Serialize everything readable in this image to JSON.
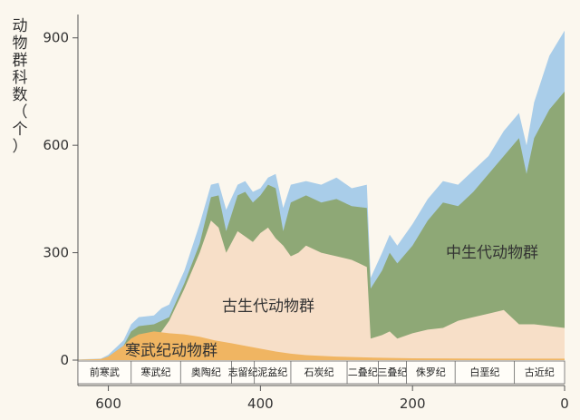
{
  "chart_data": {
    "type": "area",
    "ylabel": "动物群科数（个）",
    "xlim": [
      640,
      0
    ],
    "ylim": [
      0,
      950
    ],
    "x_ticks": [
      "600",
      "400",
      "200",
      "0"
    ],
    "y_ticks": [
      "0",
      "300",
      "600",
      "900"
    ],
    "grid": false,
    "colors": {
      "cambrian": "#f0b562",
      "paleozoic": "#f7dfc8",
      "modern": "#8ea876",
      "unassigned": "#a9cde9"
    },
    "series": [
      {
        "name": "寒武纪动物群",
        "key": "cambrian",
        "points": [
          [
            640,
            1
          ],
          [
            610,
            3
          ],
          [
            600,
            10
          ],
          [
            580,
            40
          ],
          [
            570,
            60
          ],
          [
            560,
            72
          ],
          [
            540,
            80
          ],
          [
            520,
            75
          ],
          [
            500,
            72
          ],
          [
            480,
            65
          ],
          [
            460,
            55
          ],
          [
            440,
            48
          ],
          [
            420,
            40
          ],
          [
            400,
            32
          ],
          [
            380,
            24
          ],
          [
            360,
            18
          ],
          [
            340,
            14
          ],
          [
            300,
            10
          ],
          [
            250,
            7
          ],
          [
            200,
            5
          ],
          [
            100,
            4
          ],
          [
            0,
            4
          ]
        ]
      },
      {
        "name": "古生代动物群",
        "key": "paleozoic",
        "points": [
          [
            640,
            1
          ],
          [
            610,
            2
          ],
          [
            600,
            8
          ],
          [
            580,
            25
          ],
          [
            570,
            35
          ],
          [
            560,
            40
          ],
          [
            540,
            50
          ],
          [
            520,
            110
          ],
          [
            500,
            200
          ],
          [
            480,
            300
          ],
          [
            465,
            390
          ],
          [
            455,
            370
          ],
          [
            445,
            300
          ],
          [
            430,
            360
          ],
          [
            420,
            345
          ],
          [
            410,
            330
          ],
          [
            400,
            355
          ],
          [
            390,
            370
          ],
          [
            380,
            340
          ],
          [
            370,
            320
          ],
          [
            360,
            290
          ],
          [
            350,
            300
          ],
          [
            340,
            320
          ],
          [
            320,
            300
          ],
          [
            300,
            290
          ],
          [
            280,
            280
          ],
          [
            270,
            270
          ],
          [
            260,
            260
          ],
          [
            255,
            60
          ],
          [
            240,
            70
          ],
          [
            230,
            80
          ],
          [
            220,
            60
          ],
          [
            200,
            75
          ],
          [
            180,
            85
          ],
          [
            160,
            90
          ],
          [
            140,
            110
          ],
          [
            120,
            120
          ],
          [
            100,
            130
          ],
          [
            80,
            140
          ],
          [
            60,
            100
          ],
          [
            40,
            100
          ],
          [
            20,
            95
          ],
          [
            0,
            90
          ]
        ]
      },
      {
        "name": "中生代动物群",
        "key": "modern",
        "points": [
          [
            640,
            1
          ],
          [
            610,
            2
          ],
          [
            600,
            10
          ],
          [
            580,
            40
          ],
          [
            570,
            80
          ],
          [
            560,
            95
          ],
          [
            540,
            100
          ],
          [
            520,
            120
          ],
          [
            500,
            215
          ],
          [
            480,
            325
          ],
          [
            465,
            455
          ],
          [
            455,
            460
          ],
          [
            445,
            360
          ],
          [
            430,
            460
          ],
          [
            420,
            470
          ],
          [
            410,
            440
          ],
          [
            400,
            460
          ],
          [
            390,
            490
          ],
          [
            380,
            480
          ],
          [
            370,
            360
          ],
          [
            360,
            440
          ],
          [
            340,
            460
          ],
          [
            320,
            440
          ],
          [
            300,
            450
          ],
          [
            280,
            430
          ],
          [
            260,
            425
          ],
          [
            255,
            200
          ],
          [
            240,
            250
          ],
          [
            230,
            300
          ],
          [
            220,
            270
          ],
          [
            200,
            320
          ],
          [
            180,
            390
          ],
          [
            160,
            440
          ],
          [
            140,
            430
          ],
          [
            120,
            470
          ],
          [
            100,
            520
          ],
          [
            80,
            570
          ],
          [
            60,
            620
          ],
          [
            50,
            520
          ],
          [
            40,
            620
          ],
          [
            20,
            700
          ],
          [
            0,
            750
          ]
        ]
      },
      {
        "name": "",
        "key": "unassigned",
        "points": [
          [
            640,
            2
          ],
          [
            610,
            4
          ],
          [
            600,
            15
          ],
          [
            580,
            55
          ],
          [
            570,
            100
          ],
          [
            560,
            120
          ],
          [
            540,
            125
          ],
          [
            530,
            145
          ],
          [
            520,
            155
          ],
          [
            500,
            250
          ],
          [
            480,
            380
          ],
          [
            465,
            490
          ],
          [
            455,
            495
          ],
          [
            445,
            420
          ],
          [
            430,
            490
          ],
          [
            420,
            500
          ],
          [
            410,
            470
          ],
          [
            400,
            480
          ],
          [
            390,
            510
          ],
          [
            380,
            520
          ],
          [
            370,
            425
          ],
          [
            360,
            490
          ],
          [
            340,
            500
          ],
          [
            320,
            490
          ],
          [
            300,
            510
          ],
          [
            280,
            480
          ],
          [
            260,
            490
          ],
          [
            255,
            230
          ],
          [
            240,
            300
          ],
          [
            230,
            350
          ],
          [
            220,
            320
          ],
          [
            200,
            380
          ],
          [
            180,
            450
          ],
          [
            160,
            500
          ],
          [
            140,
            490
          ],
          [
            120,
            530
          ],
          [
            100,
            570
          ],
          [
            80,
            640
          ],
          [
            60,
            690
          ],
          [
            50,
            600
          ],
          [
            40,
            720
          ],
          [
            20,
            850
          ],
          [
            0,
            920
          ]
        ]
      }
    ],
    "annotations": [
      "中生代动物群",
      "古生代动物群",
      "寒武纪动物群"
    ],
    "periods": [
      {
        "label": "前寒武",
        "start": 640,
        "end": 570
      },
      {
        "label": "寒武纪",
        "start": 570,
        "end": 505
      },
      {
        "label": "奥陶纪",
        "start": 505,
        "end": 438
      },
      {
        "label": "志留纪",
        "start": 438,
        "end": 408
      },
      {
        "label": "泥盆纪",
        "start": 408,
        "end": 360
      },
      {
        "label": "石炭纪",
        "start": 360,
        "end": 286
      },
      {
        "label": "二叠纪",
        "start": 286,
        "end": 245
      },
      {
        "label": "三叠纪",
        "start": 245,
        "end": 208
      },
      {
        "label": "侏罗纪",
        "start": 208,
        "end": 144
      },
      {
        "label": "白垩纪",
        "start": 144,
        "end": 66
      },
      {
        "label": "古近纪",
        "start": 66,
        "end": 0
      }
    ]
  }
}
